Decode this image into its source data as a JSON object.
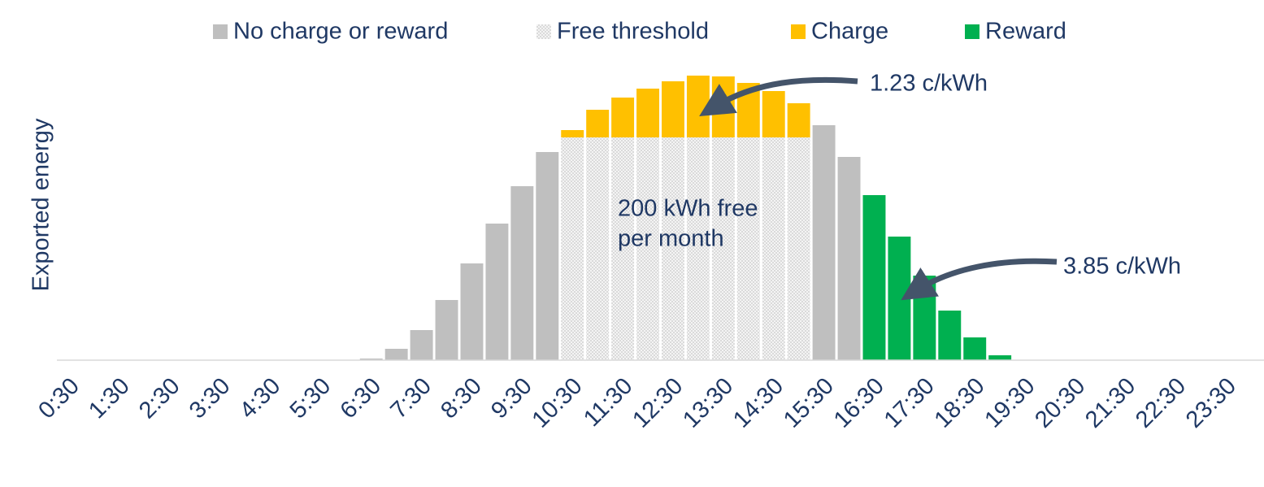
{
  "chart_data": {
    "type": "stacked-bar",
    "y_label": "Exported energy",
    "categories": [
      "0:30",
      null,
      "1:30",
      null,
      "2:30",
      null,
      "3:30",
      null,
      "4:30",
      null,
      "5:30",
      null,
      "6:30",
      null,
      "7:30",
      null,
      "8:30",
      null,
      "9:30",
      null,
      "10:30",
      null,
      "11:30",
      null,
      "12:30",
      null,
      "13:30",
      null,
      "14:30",
      null,
      "15:30",
      null,
      "16:30",
      null,
      "17:30",
      null,
      "18:30",
      null,
      "19:30",
      null,
      "20:30",
      null,
      "21:30",
      null,
      "22:30",
      null,
      "23:30",
      null
    ],
    "series": [
      {
        "name": "No charge or reward",
        "color": "#bfbfbf",
        "values": [
          null,
          null,
          null,
          null,
          null,
          null,
          null,
          null,
          null,
          null,
          null,
          null,
          2,
          14,
          37,
          74,
          119,
          168,
          214,
          256,
          null,
          null,
          null,
          null,
          null,
          null,
          null,
          null,
          null,
          null,
          289,
          250,
          null,
          null,
          null,
          null,
          null,
          null,
          null,
          null,
          null,
          null,
          null,
          null,
          null,
          null,
          null,
          null
        ]
      },
      {
        "name": "Free threshold",
        "color": "#e3e3e3",
        "pattern": true,
        "values": [
          null,
          null,
          null,
          null,
          null,
          null,
          null,
          null,
          null,
          null,
          null,
          null,
          null,
          null,
          null,
          null,
          null,
          null,
          null,
          null,
          274,
          274,
          274,
          274,
          274,
          274,
          274,
          274,
          274,
          274,
          null,
          null,
          null,
          null,
          null,
          null,
          null,
          null,
          null,
          null,
          null,
          null,
          null,
          null,
          null,
          null,
          null,
          null
        ]
      },
      {
        "name": "Charge",
        "color": "#ffc000",
        "values": [
          null,
          null,
          null,
          null,
          null,
          null,
          null,
          null,
          null,
          null,
          null,
          null,
          null,
          null,
          null,
          null,
          null,
          null,
          null,
          null,
          9,
          34,
          49,
          60,
          69,
          76,
          75,
          67,
          57,
          42,
          null,
          null,
          null,
          null,
          null,
          null,
          null,
          null,
          null,
          null,
          null,
          null,
          null,
          null,
          null,
          null,
          null,
          null
        ]
      },
      {
        "name": "Reward",
        "color": "#00b050",
        "values": [
          null,
          null,
          null,
          null,
          null,
          null,
          null,
          null,
          null,
          null,
          null,
          null,
          null,
          null,
          null,
          null,
          null,
          null,
          null,
          null,
          null,
          null,
          null,
          null,
          null,
          null,
          null,
          null,
          null,
          null,
          null,
          null,
          203,
          152,
          104,
          61,
          28,
          6,
          null,
          null,
          null,
          null,
          null,
          null,
          null,
          null,
          null,
          null
        ]
      }
    ],
    "ylim": [
      0,
      360
    ],
    "annotations": [
      "1.23 c/kWh",
      "3.85 c/kWh",
      "200 kWh free",
      "per month"
    ]
  }
}
